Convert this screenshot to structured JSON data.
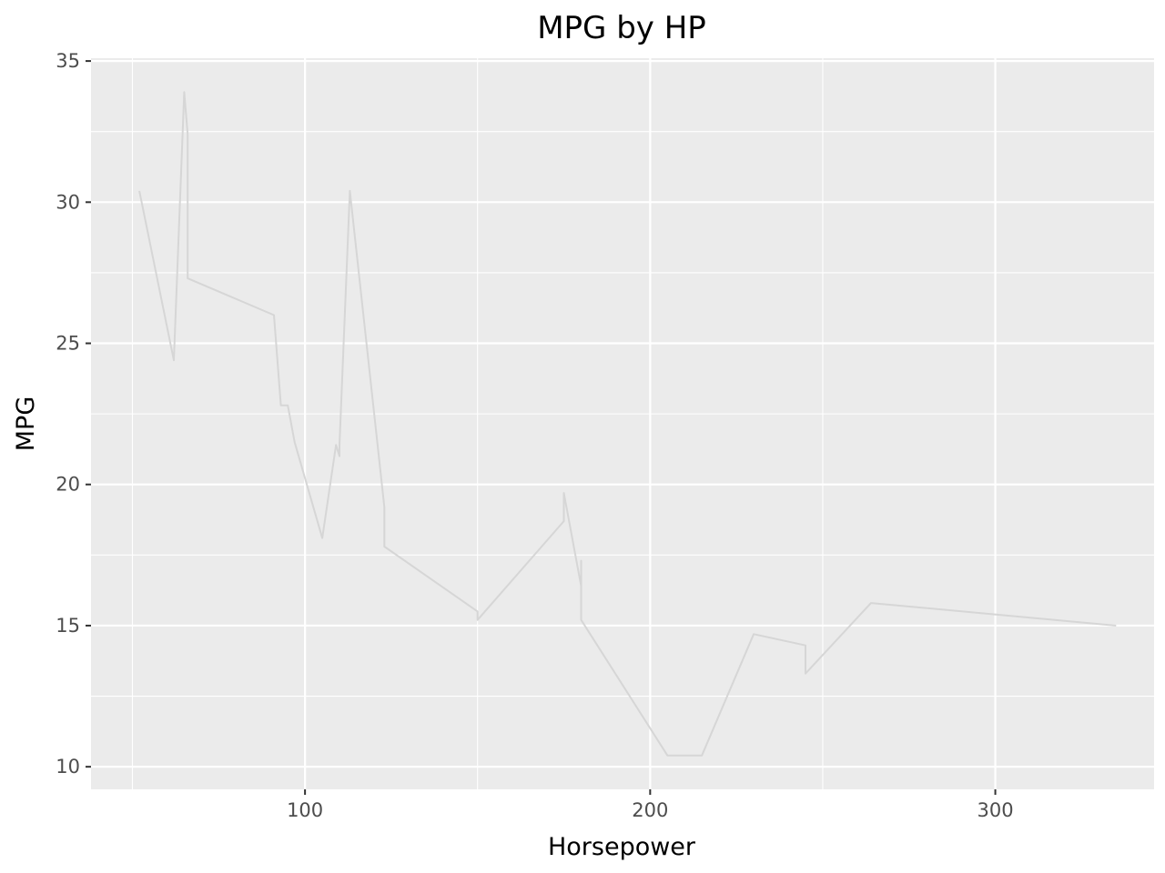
{
  "chart_data": {
    "type": "line",
    "title": "MPG by HP",
    "xlabel": "Horsepower",
    "ylabel": "MPG",
    "xlim": [
      38,
      346
    ],
    "ylim": [
      9.2,
      35.1
    ],
    "x_ticks": [
      100,
      200,
      300
    ],
    "x_tick_labels": [
      "100",
      "200",
      "300"
    ],
    "x_minor_ticks": [
      50,
      150,
      250
    ],
    "y_ticks": [
      10,
      15,
      20,
      25,
      30,
      35
    ],
    "y_tick_labels": [
      "10",
      "15",
      "20",
      "25",
      "30",
      "35"
    ],
    "y_minor_ticks": [
      12.5,
      17.5,
      22.5,
      27.5,
      32.5
    ],
    "grid": true,
    "legend": "none",
    "colors": {
      "panel_background": "#ebebeb",
      "grid": "#ffffff",
      "line": "#d6d6d6",
      "tick_text": "#4d4d4d",
      "axis_tick": "#333333"
    },
    "series": [
      {
        "x": [
          52,
          62,
          65,
          66,
          66,
          91,
          93,
          95,
          97,
          105,
          109,
          110,
          110,
          113,
          123,
          123,
          150,
          150,
          175,
          175,
          180,
          180,
          180,
          205,
          215,
          230,
          245,
          245,
          264,
          335
        ],
        "y": [
          30.4,
          24.4,
          33.9,
          32.4,
          27.3,
          26.0,
          22.8,
          22.8,
          21.5,
          18.1,
          21.4,
          21.0,
          21.4,
          30.4,
          19.2,
          17.8,
          15.5,
          15.2,
          18.7,
          19.7,
          16.4,
          17.3,
          15.2,
          10.4,
          10.4,
          14.7,
          14.3,
          13.3,
          15.8,
          15.0
        ]
      }
    ]
  }
}
